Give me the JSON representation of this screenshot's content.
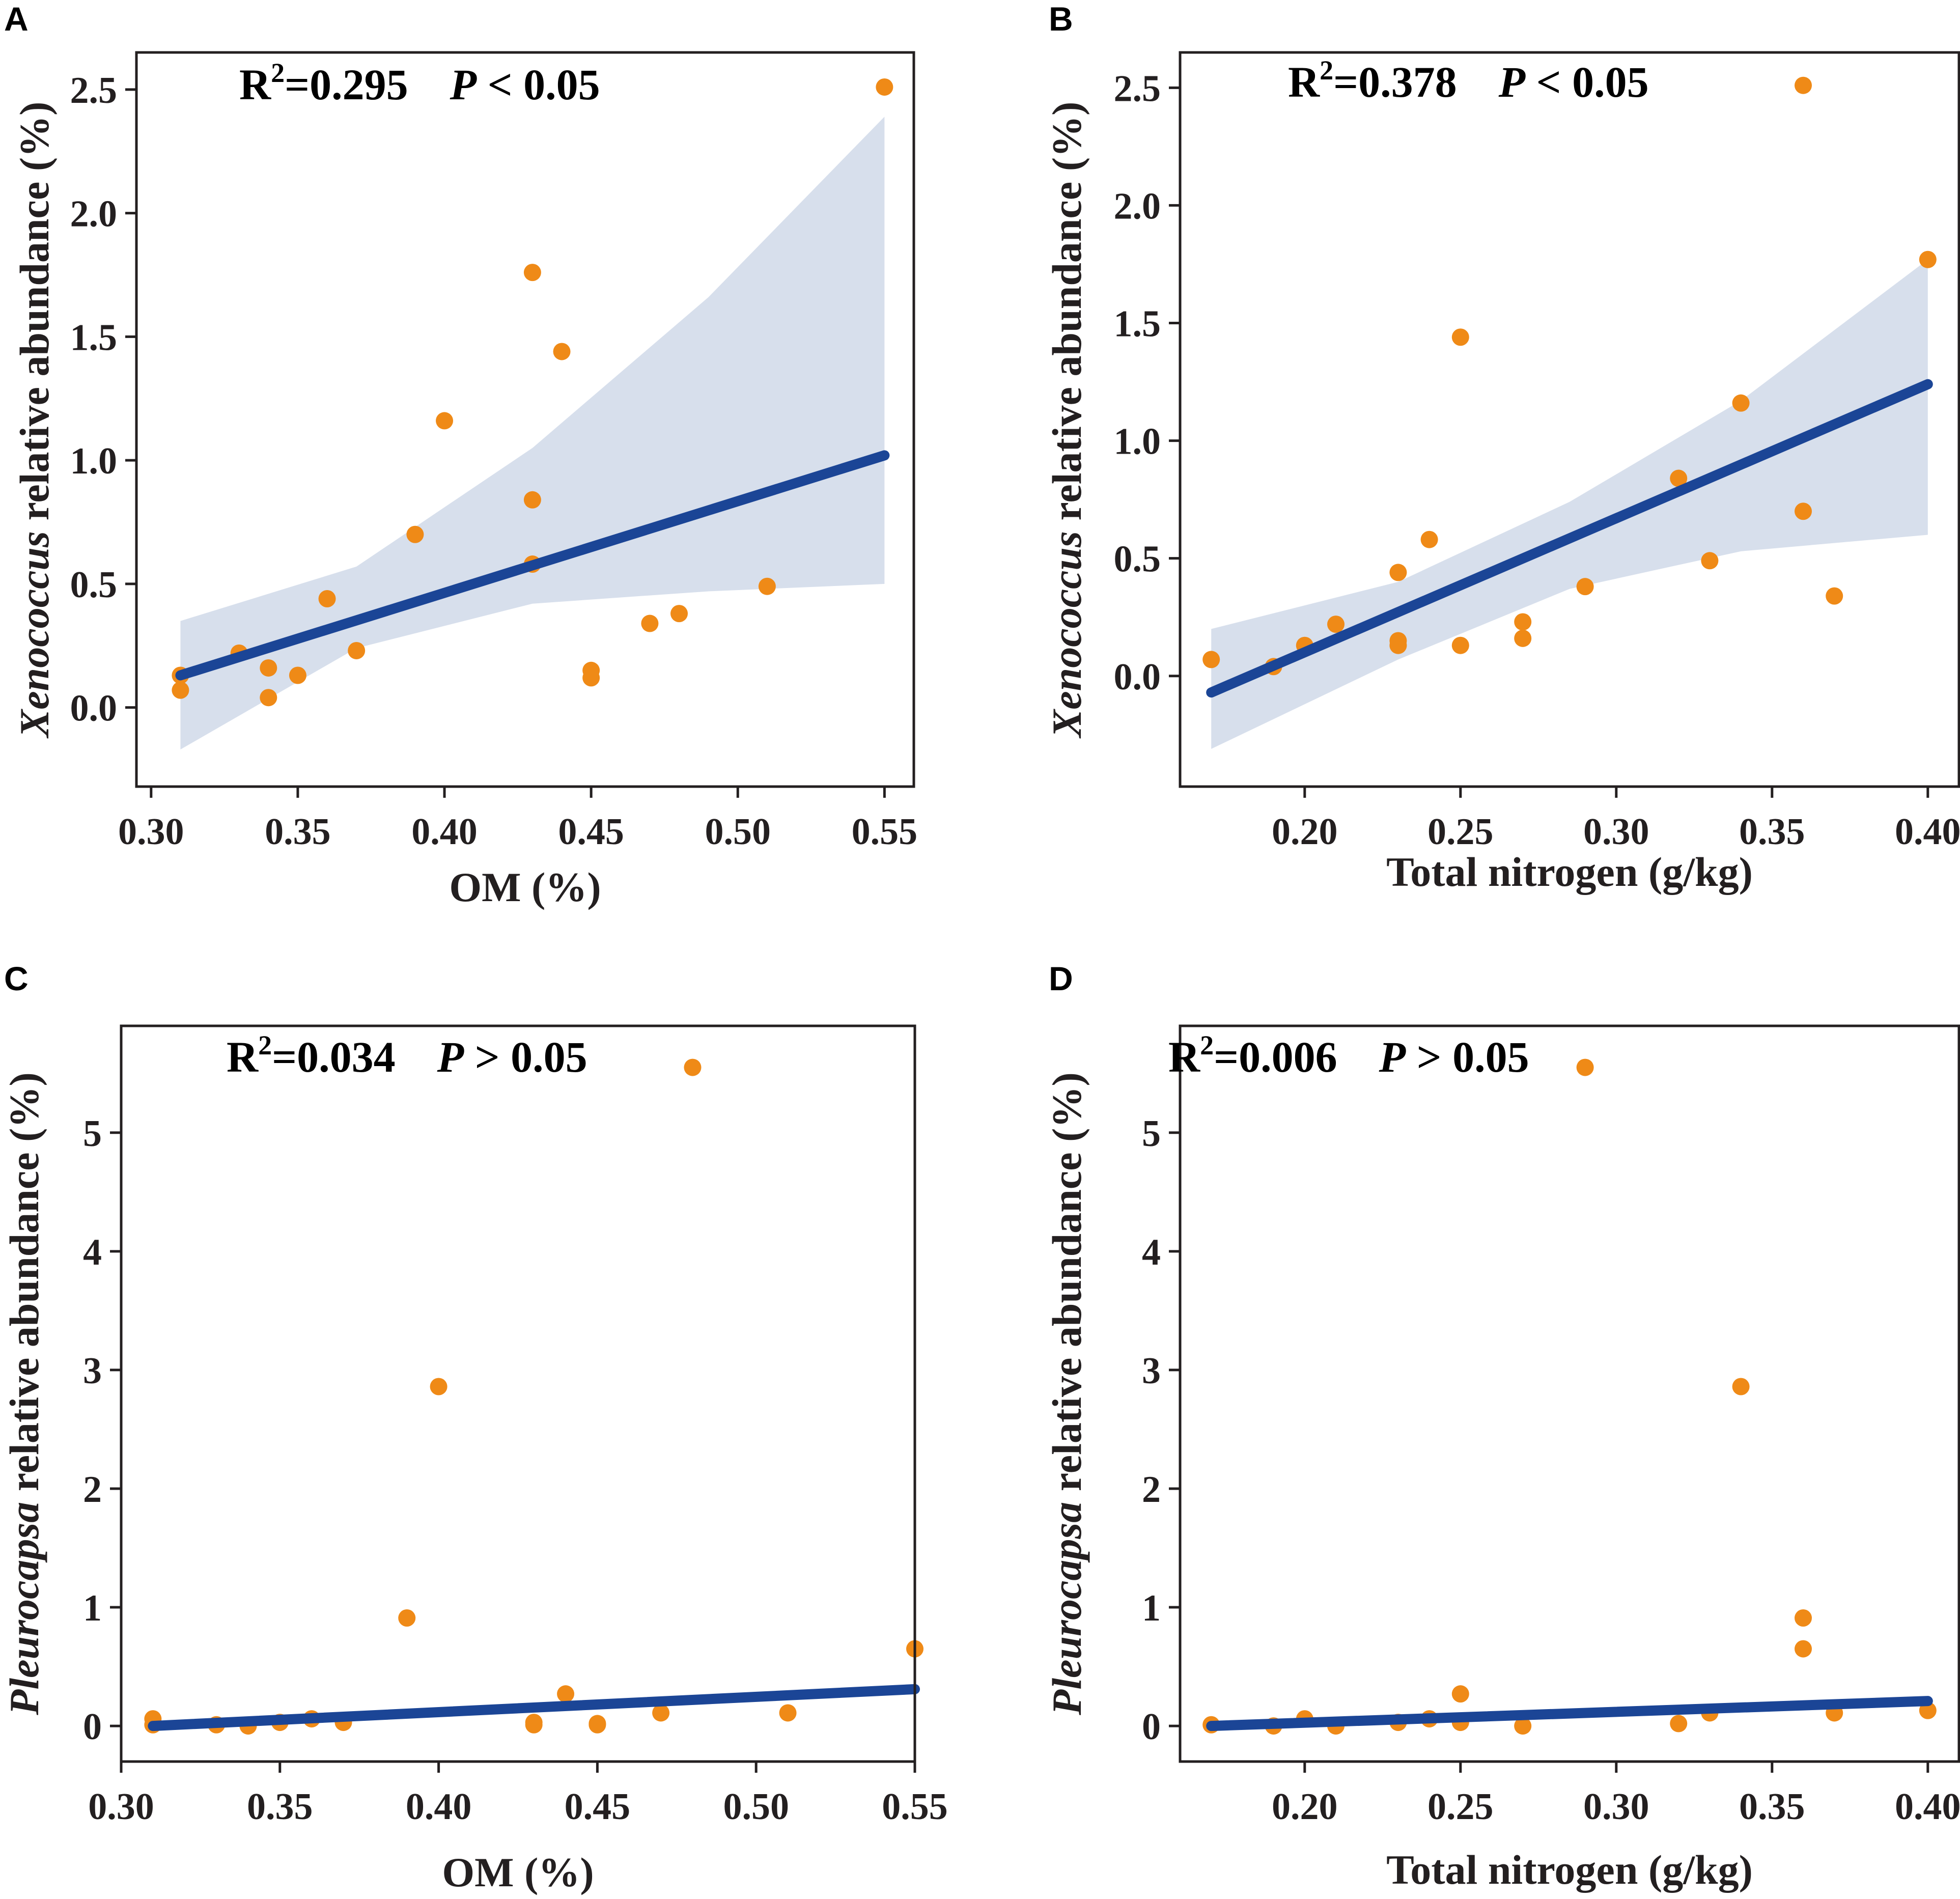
{
  "colors": {
    "points": "#ef8a17",
    "fit_line": "#1b4596",
    "band": "#d7dfec",
    "axis": "#231f20"
  },
  "chart_data": [
    {
      "panel": "A",
      "type": "scatter",
      "xlabel": "OM (%)",
      "ylabel_italic": "Xenococcus",
      "ylabel_rest": " relative abundance (%)",
      "annotation": {
        "r2_prefix": "R",
        "r2_exp": "2",
        "r2_value": "=0.295",
        "p_italic": "P",
        "p_rest": " < 0.05"
      },
      "xlim": [
        0.295,
        0.56
      ],
      "ylim": [
        -0.32,
        2.65
      ],
      "xticks": [
        0.3,
        0.35,
        0.4,
        0.45,
        0.5,
        0.55
      ],
      "xtick_labels": [
        "0.30",
        "0.35",
        "0.40",
        "0.45",
        "0.50",
        "0.55"
      ],
      "yticks": [
        0.0,
        0.5,
        1.0,
        1.5,
        2.0,
        2.5
      ],
      "ytick_labels": [
        "0.0",
        "0.5",
        "1.0",
        "1.5",
        "2.0",
        "2.5"
      ],
      "points": [
        [
          0.31,
          0.13
        ],
        [
          0.31,
          0.07
        ],
        [
          0.33,
          0.22
        ],
        [
          0.34,
          0.16
        ],
        [
          0.34,
          0.04
        ],
        [
          0.35,
          0.13
        ],
        [
          0.36,
          0.44
        ],
        [
          0.37,
          0.23
        ],
        [
          0.39,
          0.7
        ],
        [
          0.4,
          1.16
        ],
        [
          0.43,
          1.76
        ],
        [
          0.43,
          0.84
        ],
        [
          0.43,
          0.58
        ],
        [
          0.44,
          1.44
        ],
        [
          0.45,
          0.15
        ],
        [
          0.45,
          0.12
        ],
        [
          0.47,
          0.34
        ],
        [
          0.48,
          0.38
        ],
        [
          0.51,
          0.49
        ],
        [
          0.55,
          2.51
        ]
      ],
      "fit": {
        "x": [
          0.31,
          0.55
        ],
        "y": [
          0.13,
          1.02
        ]
      },
      "ci_band": {
        "x": [
          0.31,
          0.37,
          0.43,
          0.49,
          0.55
        ],
        "lower": [
          -0.17,
          0.24,
          0.42,
          0.47,
          0.5
        ],
        "upper": [
          0.35,
          0.57,
          1.05,
          1.66,
          2.39
        ]
      }
    },
    {
      "panel": "B",
      "type": "scatter",
      "xlabel": "Total nitrogen (g/kg)",
      "ylabel_italic": "Xenococcus",
      "ylabel_rest": " relative abundance (%)",
      "annotation": {
        "r2_prefix": "R",
        "r2_exp": "2",
        "r2_value": "=0.378",
        "p_italic": "P",
        "p_rest": " < 0.05"
      },
      "xlim": [
        0.16,
        0.41
      ],
      "ylim": [
        -0.47,
        2.65
      ],
      "xticks": [
        0.2,
        0.25,
        0.3,
        0.35,
        0.4
      ],
      "xtick_labels": [
        "0.20",
        "0.25",
        "0.30",
        "0.35",
        "0.40"
      ],
      "yticks": [
        0.0,
        0.5,
        1.0,
        1.5,
        2.0,
        2.5
      ],
      "ytick_labels": [
        "0.0",
        "0.5",
        "1.0",
        "1.5",
        "2.0",
        "2.5"
      ],
      "points": [
        [
          0.17,
          0.07
        ],
        [
          0.19,
          0.04
        ],
        [
          0.2,
          0.13
        ],
        [
          0.21,
          0.22
        ],
        [
          0.23,
          0.44
        ],
        [
          0.23,
          0.15
        ],
        [
          0.23,
          0.13
        ],
        [
          0.24,
          0.58
        ],
        [
          0.25,
          1.44
        ],
        [
          0.25,
          0.13
        ],
        [
          0.27,
          0.23
        ],
        [
          0.27,
          0.16
        ],
        [
          0.29,
          0.38
        ],
        [
          0.32,
          0.84
        ],
        [
          0.33,
          0.49
        ],
        [
          0.34,
          1.16
        ],
        [
          0.36,
          0.7
        ],
        [
          0.36,
          2.51
        ],
        [
          0.37,
          0.34
        ],
        [
          0.4,
          1.77
        ]
      ],
      "fit": {
        "x": [
          0.17,
          0.4
        ],
        "y": [
          -0.07,
          1.24
        ]
      },
      "ci_band": {
        "x": [
          0.17,
          0.23,
          0.285,
          0.34,
          0.4
        ],
        "lower": [
          -0.31,
          0.07,
          0.37,
          0.53,
          0.6
        ],
        "upper": [
          0.2,
          0.4,
          0.74,
          1.17,
          1.77
        ]
      }
    },
    {
      "panel": "C",
      "type": "scatter",
      "xlabel": "OM (%)",
      "ylabel_italic": "Pleurocapsa",
      "ylabel_rest": " relative abundance  (%)",
      "annotation": {
        "r2_prefix": "R",
        "r2_exp": "2",
        "r2_value": "=0.034",
        "p_italic": "P",
        "p_rest": " > 0.05"
      },
      "xlim": [
        0.3,
        0.55
      ],
      "ylim": [
        -0.3,
        5.9
      ],
      "xticks": [
        0.3,
        0.35,
        0.4,
        0.45,
        0.5,
        0.55
      ],
      "xtick_labels": [
        "0.30",
        "0.35",
        "0.40",
        "0.45",
        "0.50",
        "0.55"
      ],
      "yticks": [
        0,
        1,
        2,
        3,
        4,
        5
      ],
      "ytick_labels": [
        "0",
        "1",
        "2",
        "3",
        "4",
        "5"
      ],
      "points": [
        [
          0.31,
          0.06
        ],
        [
          0.31,
          0.01
        ],
        [
          0.33,
          0.01
        ],
        [
          0.34,
          0.0
        ],
        [
          0.35,
          0.03
        ],
        [
          0.36,
          0.06
        ],
        [
          0.37,
          0.03
        ],
        [
          0.39,
          0.91
        ],
        [
          0.4,
          2.86
        ],
        [
          0.43,
          0.03
        ],
        [
          0.43,
          0.01
        ],
        [
          0.44,
          0.27
        ],
        [
          0.45,
          0.02
        ],
        [
          0.45,
          0.01
        ],
        [
          0.47,
          0.11
        ],
        [
          0.48,
          5.55
        ],
        [
          0.51,
          0.11
        ],
        [
          0.55,
          0.65
        ]
      ],
      "fit": {
        "x": [
          0.31,
          0.55
        ],
        "y": [
          0.0,
          0.31
        ]
      },
      "ci_band": null
    },
    {
      "panel": "D",
      "type": "scatter",
      "xlabel": "Total nitrogen (g/kg)",
      "ylabel_italic": "Pleurocapsa",
      "ylabel_rest": " relative abundance (%)",
      "annotation": {
        "r2_prefix": "R",
        "r2_exp": "2",
        "r2_value": "=0.006",
        "p_italic": "P",
        "p_rest": " > 0.05"
      },
      "xlim": [
        0.16,
        0.41
      ],
      "ylim": [
        -0.3,
        5.9
      ],
      "xticks": [
        0.2,
        0.25,
        0.3,
        0.35,
        0.4
      ],
      "xtick_labels": [
        "0.20",
        "0.25",
        "0.30",
        "0.35",
        "0.40"
      ],
      "yticks": [
        0,
        1,
        2,
        3,
        4,
        5
      ],
      "ytick_labels": [
        "0",
        "1",
        "2",
        "3",
        "4",
        "5"
      ],
      "points": [
        [
          0.17,
          0.01
        ],
        [
          0.19,
          0.0
        ],
        [
          0.2,
          0.06
        ],
        [
          0.21,
          0.0
        ],
        [
          0.23,
          0.03
        ],
        [
          0.24,
          0.06
        ],
        [
          0.25,
          0.27
        ],
        [
          0.25,
          0.03
        ],
        [
          0.27,
          0.0
        ],
        [
          0.29,
          5.55
        ],
        [
          0.32,
          0.02
        ],
        [
          0.33,
          0.11
        ],
        [
          0.34,
          2.86
        ],
        [
          0.36,
          0.91
        ],
        [
          0.36,
          0.65
        ],
        [
          0.37,
          0.11
        ],
        [
          0.4,
          0.13
        ]
      ],
      "fit": {
        "x": [
          0.17,
          0.4
        ],
        "y": [
          0.0,
          0.21
        ]
      },
      "ci_band": null
    }
  ]
}
